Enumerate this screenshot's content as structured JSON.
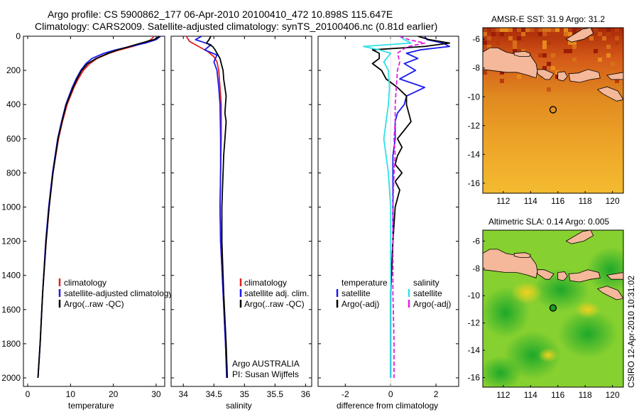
{
  "header": {
    "line1": "Argo profile: CS 5900862_177 06-Apr-2010 20100410_472 10.898S 115.647E",
    "line2": "Climatology: CARS2009. Satellite-adjusted climatology: synTS_20100406.nc (0.81d earlier)"
  },
  "credit": "CSIRO 12-Apr-2010 10:31:02",
  "colors": {
    "climatology": "#e02020",
    "satellite": "#1a1af0",
    "argo": "#000000",
    "sat_salinity": "#30e0e8",
    "argo_adj_salinity": "#e020e0",
    "land": "#f5b89a"
  },
  "chart_data": [
    {
      "type": "line",
      "id": "temperature-profile",
      "xlabel": "temperature",
      "ylabel": "",
      "xlim": [
        -1,
        32
      ],
      "ylim": [
        2050,
        0
      ],
      "xticks": [
        0,
        10,
        20,
        30
      ],
      "yticks": [
        0,
        200,
        400,
        600,
        800,
        1000,
        1200,
        1400,
        1600,
        1800,
        2000
      ],
      "legend": [
        "climatology",
        "satellite-adjusted climatology",
        "Argo(..raw -QC)"
      ],
      "series": [
        {
          "name": "climatology",
          "color": "climatology",
          "depth": [
            0,
            20,
            40,
            60,
            80,
            100,
            130,
            160,
            200,
            250,
            300,
            400,
            500,
            600,
            800,
            1000,
            1200,
            1500,
            1800,
            2000
          ],
          "values": [
            29.5,
            28.8,
            27.0,
            24.5,
            21.5,
            19.0,
            16.2,
            14.5,
            13.0,
            11.8,
            10.8,
            9.2,
            8.1,
            7.2,
            5.9,
            5.0,
            4.3,
            3.5,
            2.9,
            2.4
          ]
        },
        {
          "name": "satellite-adjusted climatology",
          "color": "satellite",
          "depth": [
            0,
            20,
            40,
            60,
            80,
            100,
            130,
            160,
            200,
            250,
            300,
            400,
            500,
            600,
            800,
            1000,
            1200,
            1500,
            1800,
            2000
          ],
          "values": [
            31.0,
            30.0,
            27.5,
            24.0,
            20.5,
            17.8,
            15.0,
            13.6,
            12.4,
            11.3,
            10.4,
            8.9,
            7.9,
            7.0,
            5.8,
            4.9,
            4.2,
            3.5,
            2.9,
            2.4
          ]
        },
        {
          "name": "Argo(..raw -QC)",
          "color": "argo",
          "depth": [
            0,
            20,
            40,
            60,
            80,
            100,
            130,
            160,
            200,
            250,
            300,
            400,
            500,
            600,
            800,
            1000,
            1200,
            1500,
            1800,
            2000
          ],
          "values": [
            30.8,
            29.5,
            26.5,
            23.8,
            21.0,
            18.8,
            16.0,
            14.0,
            12.6,
            11.5,
            10.6,
            9.0,
            8.0,
            7.1,
            5.9,
            5.0,
            4.3,
            3.5,
            2.9,
            2.4
          ]
        }
      ]
    },
    {
      "type": "line",
      "id": "salinity-profile",
      "xlabel": "salinity",
      "xlim": [
        33.8,
        36.1
      ],
      "ylim": [
        2050,
        0
      ],
      "xticks": [
        34,
        34.5,
        35,
        35.5,
        36
      ],
      "legend": [
        "climatology",
        "satellite adj. clim.",
        "Argo(..raw -QC)"
      ],
      "annotations": [
        "Argo AUSTRALIA",
        "PI: Susan Wijffels"
      ],
      "series": [
        {
          "name": "climatology",
          "color": "climatology",
          "depth": [
            0,
            30,
            60,
            90,
            120,
            150,
            200,
            300,
            400,
            600,
            800,
            1000,
            1200,
            1500,
            1800,
            2000
          ],
          "values": [
            34.05,
            34.1,
            34.25,
            34.4,
            34.5,
            34.55,
            34.58,
            34.6,
            34.62,
            34.62,
            34.61,
            34.6,
            34.61,
            34.65,
            34.69,
            34.71
          ]
        },
        {
          "name": "satellite adj. clim.",
          "color": "satellite",
          "depth": [
            0,
            20,
            50,
            80,
            110,
            150,
            200,
            300,
            400,
            600,
            800,
            1000,
            1200,
            1500,
            1800,
            2000
          ],
          "values": [
            34.3,
            34.2,
            34.45,
            34.35,
            34.55,
            34.5,
            34.55,
            34.58,
            34.6,
            34.61,
            34.61,
            34.6,
            34.61,
            34.65,
            34.69,
            34.71
          ]
        },
        {
          "name": "Argo(..raw -QC)",
          "color": "argo",
          "depth": [
            0,
            20,
            40,
            60,
            80,
            100,
            130,
            160,
            200,
            250,
            300,
            350,
            400,
            450,
            500,
            600,
            700,
            800,
            900,
            1000,
            1200,
            1500,
            1800,
            2000
          ],
          "values": [
            34.45,
            34.42,
            34.38,
            34.48,
            34.52,
            34.55,
            34.6,
            34.62,
            34.65,
            34.66,
            34.68,
            34.7,
            34.69,
            34.68,
            34.7,
            34.68,
            34.66,
            34.65,
            34.64,
            34.63,
            34.63,
            34.66,
            34.7,
            34.72
          ]
        }
      ]
    },
    {
      "type": "line",
      "id": "difference-profile",
      "xlabel": "difference from climatology",
      "xlim": [
        -3.2,
        3.0
      ],
      "ylim": [
        2050,
        0
      ],
      "xticks": [
        -2,
        0,
        2
      ],
      "legend_groups": [
        {
          "title": "temperature",
          "items": [
            "satellite",
            "Argo(-adj)"
          ]
        },
        {
          "title": "salinity",
          "items": [
            "satellite",
            "Argo(-adj)"
          ]
        }
      ],
      "series": [
        {
          "name": "temperature satellite",
          "color": "satellite",
          "depth": [
            0,
            20,
            40,
            60,
            80,
            100,
            130,
            160,
            200,
            250,
            300,
            350,
            400,
            450,
            500,
            600,
            700,
            800,
            900,
            1000,
            1200,
            1500,
            1800,
            2000
          ],
          "values": [
            1.5,
            1.6,
            2.3,
            2.6,
            1.3,
            0.7,
            1.2,
            0.6,
            1.1,
            0.4,
            1.5,
            0.7,
            0.6,
            0.3,
            0.2,
            0.2,
            0.1,
            0.1,
            0.1,
            0.1,
            0.1,
            0.0,
            0.0,
            0.0
          ]
        },
        {
          "name": "temperature Argo(-adj)",
          "color": "argo",
          "depth": [
            0,
            20,
            40,
            60,
            80,
            100,
            130,
            160,
            200,
            250,
            300,
            350,
            400,
            500,
            550,
            600,
            650,
            700,
            750,
            800,
            850,
            900,
            1000,
            1200,
            1500,
            1800,
            2000
          ],
          "values": [
            1.2,
            1.7,
            2.6,
            1.5,
            -0.8,
            -0.5,
            -0.5,
            -0.8,
            -0.4,
            -0.2,
            0.3,
            0.7,
            0.7,
            0.9,
            0.6,
            0.3,
            0.5,
            0.3,
            0.2,
            0.5,
            0.2,
            0.4,
            0.2,
            0.1,
            0.0,
            0.0,
            0.0
          ]
        },
        {
          "name": "salinity satellite",
          "color": "sat_salinity",
          "depth": [
            0,
            20,
            40,
            60,
            80,
            100,
            150,
            200,
            300,
            400,
            600,
            800,
            1000,
            1200,
            1500,
            1800,
            2000
          ],
          "values": [
            0.4,
            0.6,
            0.9,
            -1.2,
            -0.5,
            0.0,
            -0.3,
            -0.1,
            -0.05,
            -0.1,
            -0.3,
            -0.1,
            0.0,
            0.0,
            0.0,
            0.0,
            0.0
          ]
        },
        {
          "name": "salinity Argo(-adj)",
          "color": "argo_adj_salinity",
          "depth": [
            0,
            20,
            40,
            60,
            80,
            100,
            150,
            200,
            300,
            400,
            500,
            600,
            700,
            800,
            1000,
            1200,
            1500,
            1800,
            2000
          ],
          "values": [
            0.4,
            0.8,
            1.5,
            0.8,
            0.5,
            0.3,
            0.4,
            0.3,
            0.25,
            0.2,
            0.2,
            0.15,
            0.2,
            0.15,
            0.1,
            0.1,
            0.1,
            0.15,
            0.15
          ]
        }
      ]
    },
    {
      "type": "heatmap",
      "id": "sst-map",
      "title": "AMSR-E SST: 31.9 Argo: 31.2",
      "xlim": [
        110.5,
        120.8
      ],
      "ylim": [
        -16.7,
        -5.2
      ],
      "xticks": [
        112,
        114,
        116,
        118,
        120
      ],
      "yticks": [
        -6,
        -8,
        -10,
        -12,
        -14,
        -16
      ],
      "profile_location": [
        115.647,
        -10.898
      ]
    },
    {
      "type": "heatmap",
      "id": "sla-map",
      "title": "Altimetric SLA: 0.14 Argo: 0.005",
      "xlim": [
        110.5,
        120.8
      ],
      "ylim": [
        -16.7,
        -5.2
      ],
      "xticks": [
        112,
        114,
        116,
        118,
        120
      ],
      "yticks": [
        -6,
        -8,
        -10,
        -12,
        -14,
        -16
      ],
      "profile_location": [
        115.647,
        -10.898
      ]
    }
  ]
}
